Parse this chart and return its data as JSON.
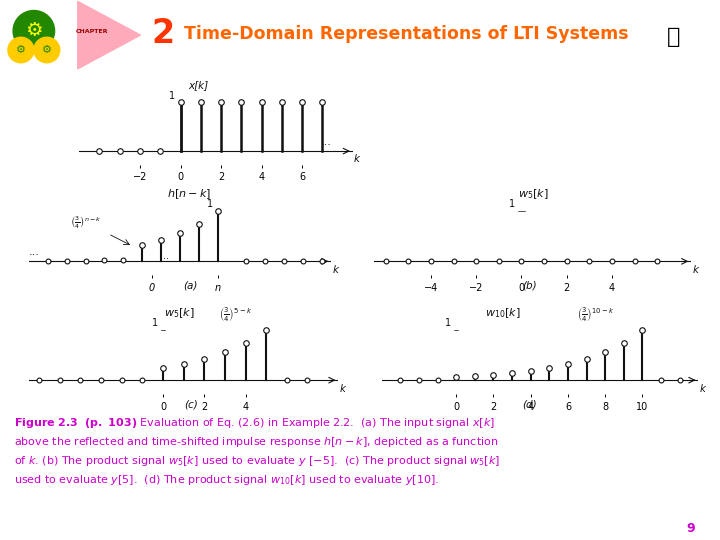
{
  "title_color": "#FF6600",
  "magenta": "#CC00CC",
  "dark": "#111111",
  "header_navy": "#000055",
  "page_num": "9",
  "caption_line1": "Figure 2.3  (p. 103) Evaluation of Eq. (2.6) in Example 2.2.  (a) The input signal ",
  "caption_line2": "above the reflected and time-shifted impulse response ",
  "caption_line3": "of ",
  "caption_line4": "used to evaluate ",
  "caption_line5": "used to evaluate "
}
